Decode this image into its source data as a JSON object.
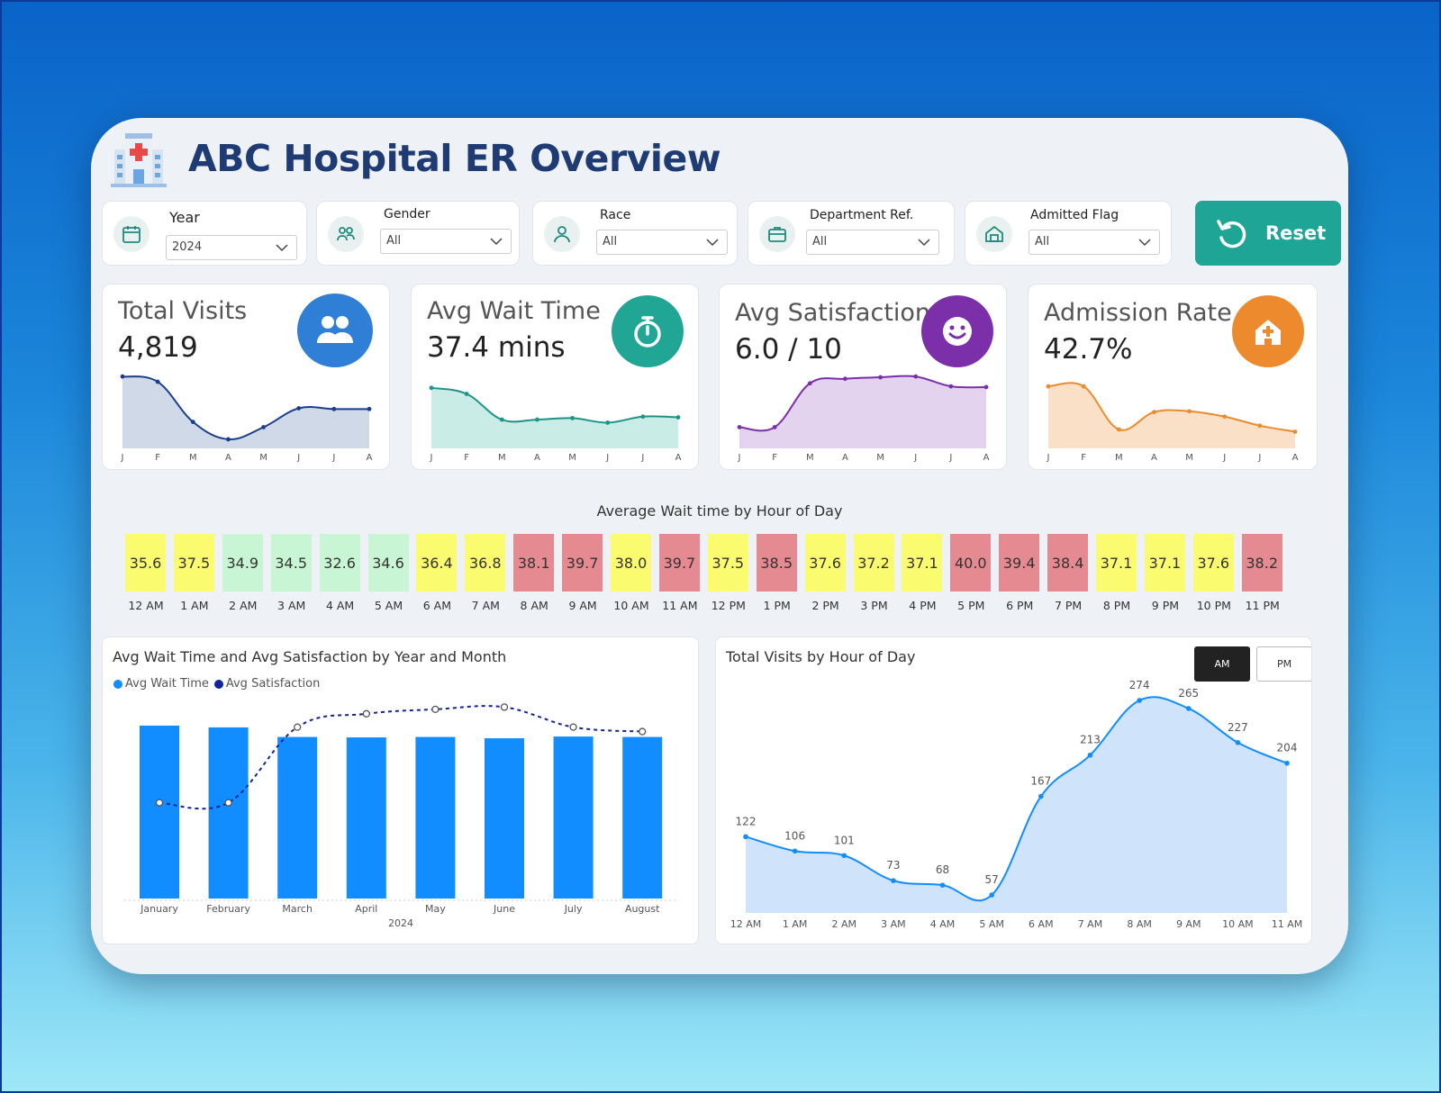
{
  "header": {
    "title": "ABC Hospital ER Overview"
  },
  "filters": [
    {
      "label": "Year",
      "value": "2024",
      "icon": "calendar-icon"
    },
    {
      "label": "Gender",
      "value": "All",
      "icon": "people-icon"
    },
    {
      "label": "Race",
      "value": "All",
      "icon": "person-icon"
    },
    {
      "label": "Department Ref.",
      "value": "All",
      "icon": "briefcase-icon"
    },
    {
      "label": "Admitted Flag",
      "value": "All",
      "icon": "home-icon"
    }
  ],
  "reset": {
    "label": "Reset",
    "icon": "reset-icon"
  },
  "kpis": [
    {
      "title": "Total Visits",
      "value": "4,819",
      "color": "#2f7fd6",
      "icon": "users-icon",
      "line": "#1a3e8c",
      "fill": "#cfd9e8",
      "trend": [
        0.95,
        0.88,
        0.35,
        0.12,
        0.28,
        0.53,
        0.52,
        0.52
      ]
    },
    {
      "title": "Avg Wait Time",
      "value": "37.4 mins",
      "color": "#21a595",
      "icon": "stopwatch-icon",
      "line": "#1e9488",
      "fill": "#c9ece6",
      "trend": [
        0.8,
        0.72,
        0.38,
        0.38,
        0.4,
        0.34,
        0.42,
        0.41
      ]
    },
    {
      "title": "Avg Satisfaction",
      "value": "6.0 / 10",
      "color": "#7b2fa8",
      "icon": "smile-icon",
      "line": "#7b2fa8",
      "fill": "#e3d3ef",
      "trend": [
        0.28,
        0.28,
        0.86,
        0.92,
        0.94,
        0.95,
        0.82,
        0.81
      ]
    },
    {
      "title": "Admission Rate",
      "value": "42.7%",
      "color": "#ee8a2e",
      "icon": "hospital-icon",
      "line": "#ee8a2e",
      "fill": "#fbe0c8",
      "trend": [
        0.82,
        0.82,
        0.25,
        0.48,
        0.49,
        0.42,
        0.3,
        0.22
      ]
    }
  ],
  "kpi_months": [
    "J",
    "F",
    "M",
    "A",
    "M",
    "J",
    "J",
    "A"
  ],
  "heatmap": {
    "title": "Average Wait time by Hour of Day",
    "colors": {
      "low": "#c8f5d3",
      "mid": "#fbfb70",
      "high": "#e48a90"
    },
    "cells": [
      {
        "hour": "12 AM",
        "value": "35.6",
        "level": "mid"
      },
      {
        "hour": "1 AM",
        "value": "37.5",
        "level": "mid"
      },
      {
        "hour": "2 AM",
        "value": "34.9",
        "level": "low"
      },
      {
        "hour": "3 AM",
        "value": "34.5",
        "level": "low"
      },
      {
        "hour": "4 AM",
        "value": "32.6",
        "level": "low"
      },
      {
        "hour": "5 AM",
        "value": "34.6",
        "level": "low"
      },
      {
        "hour": "6 AM",
        "value": "36.4",
        "level": "mid"
      },
      {
        "hour": "7 AM",
        "value": "36.8",
        "level": "mid"
      },
      {
        "hour": "8 AM",
        "value": "38.1",
        "level": "high"
      },
      {
        "hour": "9 AM",
        "value": "39.7",
        "level": "high"
      },
      {
        "hour": "10 AM",
        "value": "38.0",
        "level": "mid"
      },
      {
        "hour": "11 AM",
        "value": "39.7",
        "level": "high"
      },
      {
        "hour": "12 PM",
        "value": "37.5",
        "level": "mid"
      },
      {
        "hour": "1 PM",
        "value": "38.5",
        "level": "high"
      },
      {
        "hour": "2 PM",
        "value": "37.6",
        "level": "mid"
      },
      {
        "hour": "3 PM",
        "value": "37.2",
        "level": "mid"
      },
      {
        "hour": "4 PM",
        "value": "37.1",
        "level": "mid"
      },
      {
        "hour": "5 PM",
        "value": "40.0",
        "level": "high"
      },
      {
        "hour": "6 PM",
        "value": "39.4",
        "level": "high"
      },
      {
        "hour": "7 PM",
        "value": "38.4",
        "level": "high"
      },
      {
        "hour": "8 PM",
        "value": "37.1",
        "level": "mid"
      },
      {
        "hour": "9 PM",
        "value": "37.1",
        "level": "mid"
      },
      {
        "hour": "10 PM",
        "value": "37.6",
        "level": "mid"
      },
      {
        "hour": "11 PM",
        "value": "38.2",
        "level": "high"
      }
    ]
  },
  "combo": {
    "title": "Avg Wait Time and Avg Satisfaction by Year and Month",
    "legend": [
      "Avg Wait Time",
      "Avg Satisfaction"
    ],
    "colors": [
      "#118dff",
      "#12239e"
    ],
    "year_label": "2024"
  },
  "area": {
    "title": "Total Visits by Hour of Day",
    "am_label": "AM",
    "pm_label": "PM"
  },
  "chart_data": [
    {
      "type": "bar",
      "title": "Avg Wait Time and Avg Satisfaction by Year and Month",
      "categories": [
        "January",
        "February",
        "March",
        "April",
        "May",
        "June",
        "July",
        "August"
      ],
      "x_group": "2024",
      "series": [
        {
          "name": "Avg Wait Time",
          "type": "bar",
          "values": [
            39.6,
            39.2,
            37.0,
            36.9,
            37.0,
            36.7,
            37.1,
            37.0
          ]
        },
        {
          "name": "Avg Satisfaction",
          "type": "line",
          "values": [
            4.9,
            4.9,
            6.6,
            6.9,
            7.0,
            7.05,
            6.6,
            6.5
          ]
        }
      ]
    },
    {
      "type": "area",
      "title": "Total Visits by Hour of Day",
      "categories": [
        "12 AM",
        "1 AM",
        "2 AM",
        "3 AM",
        "4 AM",
        "5 AM",
        "6 AM",
        "7 AM",
        "8 AM",
        "9 AM",
        "10 AM",
        "11 AM"
      ],
      "values": [
        122,
        106,
        101,
        73,
        68,
        57,
        167,
        213,
        274,
        265,
        227,
        204
      ],
      "ylim": [
        40,
        280
      ]
    }
  ]
}
